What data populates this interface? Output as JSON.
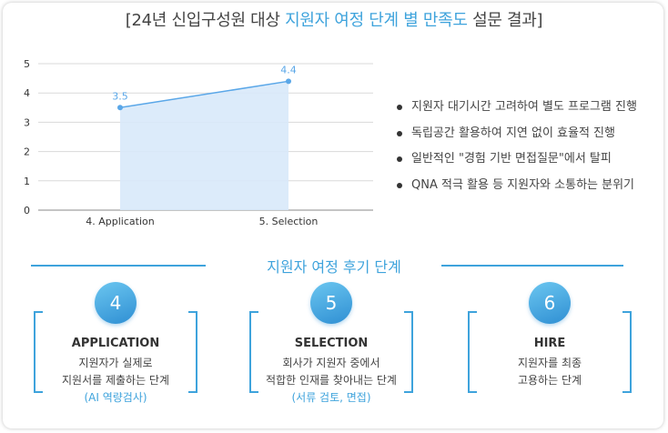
{
  "title": {
    "prefix": "[24년 신입구성원 대상 ",
    "highlight": "지원자 여정 단계 별 만족도",
    "suffix": " 설문 결과]"
  },
  "colors": {
    "accent": "#3ea3dc",
    "area_fill": "#d8e9f9",
    "line": "#5aa7e8"
  },
  "chart_data": {
    "type": "area",
    "categories": [
      "4. Application",
      "5. Selection"
    ],
    "values": [
      3.5,
      4.4
    ],
    "data_labels": [
      "3.5",
      "4.4"
    ],
    "yticks": [
      "0",
      "1",
      "2",
      "3",
      "4",
      "5"
    ],
    "ylim": [
      0,
      5
    ],
    "grid": true
  },
  "bullets": [
    "지원자 대기시간 고려하여 별도 프로그램 진행",
    "독립공간 활용하여 지연 없이 효율적 진행",
    "일반적인 \"경험 기반 면접질문\"에서 탈피",
    "QNA 적극 활용 등 지원자와 소통하는 분위기"
  ],
  "stages": {
    "title": "지원자 여정 후기 단계",
    "cards": [
      {
        "number": "4",
        "name": "APPLICATION",
        "line1": "지원자가 실제로",
        "line2": "지원서를 제출하는 단계",
        "note": "(AI 역량검사)"
      },
      {
        "number": "5",
        "name": "SELECTION",
        "line1": "회사가 지원자 중에서",
        "line2": "적합한 인재를 찾아내는 단계",
        "note": "(서류 검토, 면접)"
      },
      {
        "number": "6",
        "name": "HIRE",
        "line1": "지원자를 최종",
        "line2": "고용하는 단계",
        "note": ""
      }
    ]
  }
}
